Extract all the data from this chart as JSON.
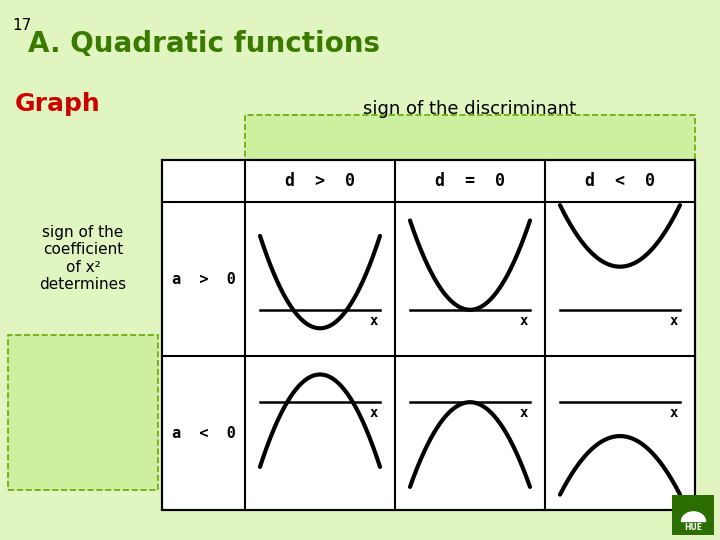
{
  "title_number": "17",
  "title_main": "A. Quadratic functions",
  "label_graph": "Graph",
  "label_sign_disc": "sign of the discriminant",
  "label_sign_coeff": "sign of the\ncoefficient\nof x²\ndetermines",
  "col_headers": [
    "d  >  0",
    "d  =  0",
    "d  <  0"
  ],
  "row_headers": [
    "a  >  0",
    "a  <  0"
  ],
  "bg_color": "#e0f5c0",
  "table_bg": "#ffffff",
  "header_fill": "#ccf0a0",
  "title_color": "#3a7a00",
  "graph_label_color": "#cc0000",
  "text_color": "#000000",
  "border_color": "#66aa00",
  "line_color": "#000000",
  "curve_color": "#000000",
  "hue_dark_green": "#2d6e00",
  "hue_mid_green": "#4a9a10"
}
